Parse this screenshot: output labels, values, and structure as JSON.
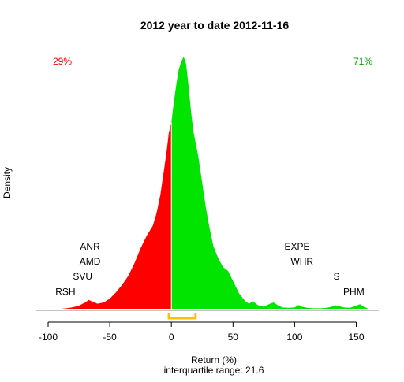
{
  "chart_data": {
    "type": "area",
    "title": "2012  year to date 2012-11-16",
    "xlabel": "Return (%)",
    "ylabel": "Density",
    "subtitle": "interquartile range: 21.6",
    "xlim": [
      -102,
      172
    ],
    "ylim": [
      0,
      1
    ],
    "xticks": [
      -100,
      -50,
      0,
      50,
      100,
      150
    ],
    "grid": false,
    "split_x": 0,
    "colors": {
      "negative": "#ff0000",
      "positive": "#00e400",
      "iqr": "#ffc000",
      "axis": "#000000",
      "frame": "#888888"
    },
    "percent_negative": "29%",
    "percent_positive": "71%",
    "iqr_range": [
      -2,
      19.6
    ],
    "density": {
      "x": [
        -90,
        -85,
        -80,
        -75,
        -70,
        -67,
        -64,
        -60,
        -55,
        -50,
        -45,
        -40,
        -35,
        -30,
        -25,
        -20,
        -15,
        -12,
        -9,
        -6,
        -4,
        -2,
        0,
        2,
        4,
        6,
        8,
        10,
        12,
        14,
        16,
        18,
        20,
        22,
        25,
        28,
        31,
        34,
        38,
        42,
        46,
        50,
        55,
        60,
        63,
        66,
        70,
        75,
        80,
        83,
        86,
        90,
        95,
        100,
        103,
        106,
        110,
        115,
        120,
        125,
        130,
        133,
        136,
        140,
        145,
        150,
        153,
        156,
        160
      ],
      "y": [
        0.0,
        0.002,
        0.006,
        0.012,
        0.025,
        0.035,
        0.028,
        0.02,
        0.025,
        0.04,
        0.065,
        0.095,
        0.13,
        0.18,
        0.24,
        0.29,
        0.33,
        0.38,
        0.45,
        0.55,
        0.62,
        0.7,
        0.74,
        0.82,
        0.89,
        0.95,
        0.98,
        1.0,
        0.97,
        0.88,
        0.78,
        0.7,
        0.65,
        0.6,
        0.5,
        0.4,
        0.32,
        0.25,
        0.2,
        0.165,
        0.15,
        0.11,
        0.06,
        0.03,
        0.02,
        0.03,
        0.015,
        0.008,
        0.02,
        0.025,
        0.015,
        0.005,
        0.004,
        0.005,
        0.015,
        0.008,
        0.004,
        0.002,
        0.002,
        0.003,
        0.008,
        0.014,
        0.01,
        0.005,
        0.004,
        0.012,
        0.018,
        0.008,
        0.0
      ]
    },
    "annotations": [
      {
        "text": "RSH",
        "x": -86,
        "y": 0.055
      },
      {
        "text": "SVU",
        "x": -72,
        "y": 0.115
      },
      {
        "text": "AMD",
        "x": -66,
        "y": 0.175
      },
      {
        "text": "ANR",
        "x": -66,
        "y": 0.235
      },
      {
        "text": "EXPE",
        "x": 102,
        "y": 0.235
      },
      {
        "text": "WHR",
        "x": 106,
        "y": 0.175
      },
      {
        "text": "S",
        "x": 134,
        "y": 0.115
      },
      {
        "text": "PHM",
        "x": 148,
        "y": 0.055
      }
    ]
  }
}
